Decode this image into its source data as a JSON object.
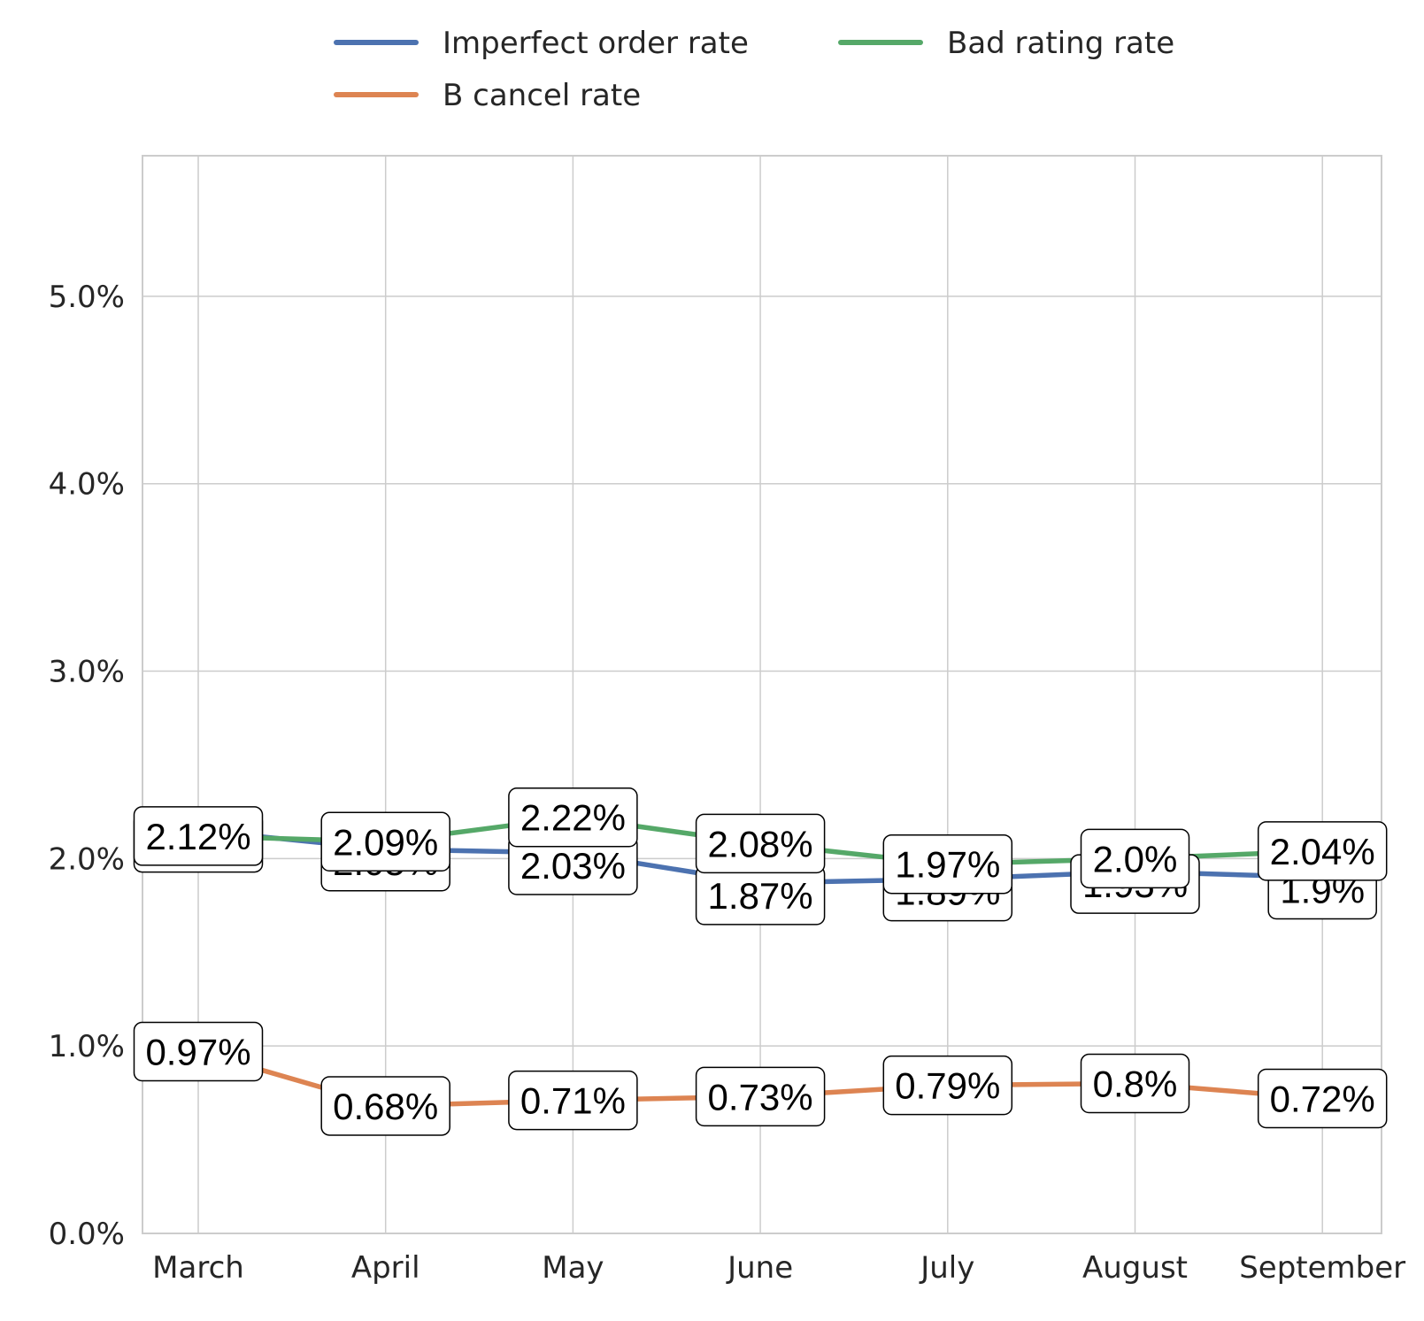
{
  "chart_data": {
    "type": "line",
    "categories": [
      "March",
      "April",
      "May",
      "June",
      "July",
      "August",
      "September"
    ],
    "ylim": [
      0,
      5.75
    ],
    "yticks": [
      0,
      1,
      2,
      3,
      4,
      5
    ],
    "ytick_labels": [
      "0.0%",
      "1.0%",
      "2.0%",
      "3.0%",
      "4.0%",
      "5.0%"
    ],
    "grid": true,
    "legend_position": "top-center",
    "series": [
      {
        "name": "Imperfect order rate",
        "color": "#4c72b0",
        "values": [
          2.15,
          2.05,
          2.03,
          1.87,
          1.89,
          1.93,
          1.9
        ],
        "labels": [
          "2.15%",
          "2.05%",
          "2.03%",
          "1.87%",
          "1.89%",
          "1.93%",
          "1.9%"
        ]
      },
      {
        "name": "B cancel rate",
        "color": "#dd8452",
        "values": [
          0.97,
          0.68,
          0.71,
          0.73,
          0.79,
          0.8,
          0.72
        ],
        "labels": [
          "0.97%",
          "0.68%",
          "0.71%",
          "0.73%",
          "0.79%",
          "0.8%",
          "0.72%"
        ]
      },
      {
        "name": "Bad rating rate",
        "color": "#55a868",
        "values": [
          2.12,
          2.09,
          2.22,
          2.08,
          1.97,
          2.0,
          2.04
        ],
        "labels": [
          "2.12%",
          "2.09%",
          "2.22%",
          "2.08%",
          "1.97%",
          "2.0%",
          "2.04%"
        ]
      }
    ]
  }
}
